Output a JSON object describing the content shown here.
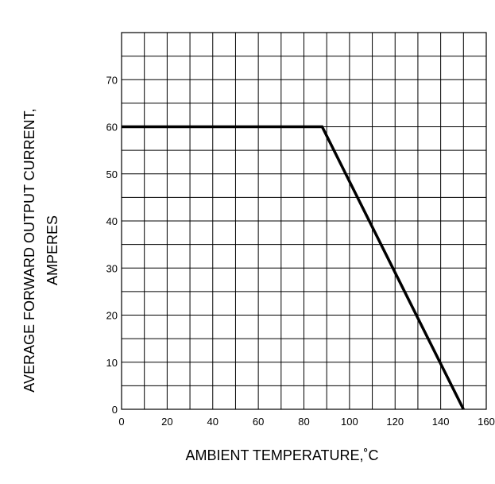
{
  "chart_data": {
    "type": "line",
    "title": "",
    "xlabel": "AMBIENT TEMPERATURE,˚C",
    "ylabel": [
      "AVERAGE FORWARD OUTPUT CURRENT,",
      "AMPERES"
    ],
    "xlim": [
      0,
      160
    ],
    "ylim": [
      0,
      80
    ],
    "x_ticks": [
      0,
      20,
      40,
      60,
      80,
      100,
      120,
      140,
      160
    ],
    "y_ticks": [
      0,
      10,
      20,
      30,
      40,
      50,
      60,
      70
    ],
    "grid": true,
    "legend": "none",
    "series": [
      {
        "x": [
          0,
          88,
          150
        ],
        "y": [
          60,
          60,
          0
        ]
      }
    ]
  }
}
